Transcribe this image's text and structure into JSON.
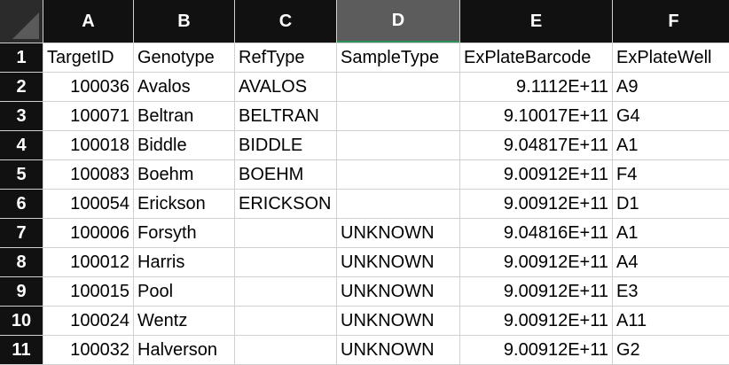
{
  "columns": [
    "A",
    "B",
    "C",
    "D",
    "E",
    "F"
  ],
  "row_numbers": [
    "1",
    "2",
    "3",
    "4",
    "5",
    "6",
    "7",
    "8",
    "9",
    "10",
    "11"
  ],
  "header_row": [
    "TargetID",
    "Genotype",
    "RefType",
    "SampleType",
    "ExPlateBarcode",
    "ExPlateWell"
  ],
  "rows": [
    [
      "100036",
      "Avalos",
      "AVALOS",
      "",
      "9.1112E+11",
      "A9"
    ],
    [
      "100071",
      "Beltran",
      "BELTRAN",
      "",
      "9.10017E+11",
      "G4"
    ],
    [
      "100018",
      "Biddle",
      "BIDDLE",
      "",
      "9.04817E+11",
      "A1"
    ],
    [
      "100083",
      "Boehm",
      "BOEHM",
      "",
      "9.00912E+11",
      "F4"
    ],
    [
      "100054",
      "Erickson",
      "ERICKSON",
      "",
      "9.00912E+11",
      "D1"
    ],
    [
      "100006",
      "Forsyth",
      "",
      "UNKNOWN",
      "9.04816E+11",
      "A1"
    ],
    [
      "100012",
      "Harris",
      "",
      "UNKNOWN",
      "9.00912E+11",
      "A4"
    ],
    [
      "100015",
      "Pool",
      "",
      "UNKNOWN",
      "9.00912E+11",
      "E3"
    ],
    [
      "100024",
      "Wentz",
      "",
      "UNKNOWN",
      "9.00912E+11",
      "A11"
    ],
    [
      "100032",
      "Halverson",
      "",
      "UNKNOWN",
      "9.00912E+11",
      "G2"
    ]
  ],
  "selected_column": "D",
  "colors": {
    "header_bg": "#111111",
    "selected_header_bg": "#5c5c5c",
    "selection_accent": "#2f8f5a"
  }
}
